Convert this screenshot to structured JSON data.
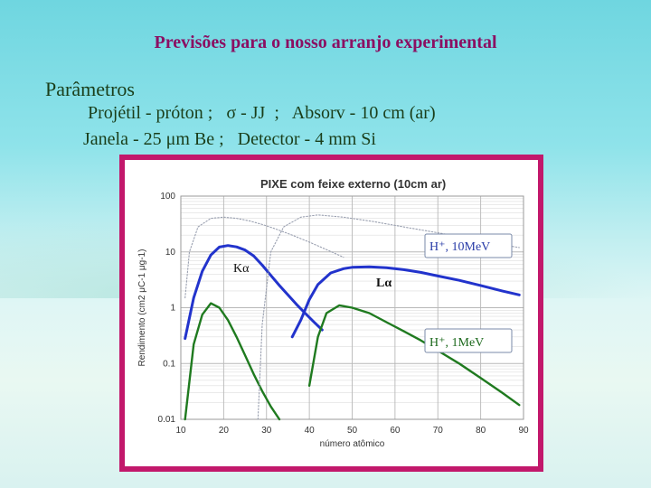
{
  "slide": {
    "title": "Previsões para o nosso arranjo experimental",
    "params_heading": "Parâmetros",
    "params_line1": "Projétil - próton ;   σ - JJ  ;   Absorv - 10 cm (ar)",
    "params_line2": "Janela - 25 μm Be ;   Detector - 4 mm Si"
  },
  "colors": {
    "title": "#8b0f62",
    "text": "#1a3e1a",
    "frame": "#c2186b",
    "blue_series": "#2233cc",
    "green_series": "#1f7a1f",
    "dotted_series": "#9aa0b0"
  },
  "chart_data": {
    "type": "line",
    "title": "PIXE   com feixe externo (10cm ar)",
    "xlabel": "número atômico",
    "ylabel": "Rendimento (cm2 μC-1 μg-1)",
    "xlim": [
      10,
      90
    ],
    "ylim": [
      0.01,
      100
    ],
    "yscale": "log",
    "grid": true,
    "x_ticks": [
      "10",
      "20",
      "30",
      "40",
      "50",
      "60",
      "70",
      "80",
      "90"
    ],
    "y_ticks": [
      "0.01",
      "0.1",
      "1",
      "10",
      "100"
    ],
    "annotations": {
      "box_10mev": "H⁺, 10MeV",
      "box_1mev": "H⁺, 1MeV",
      "k_alpha": "Kα",
      "l_alpha": "Lα"
    },
    "series": [
      {
        "style": "blue-solid",
        "x": [
          11,
          13,
          15,
          17,
          19,
          21,
          23,
          25,
          27,
          29,
          31,
          33,
          35,
          37,
          39,
          41,
          43
        ],
        "y": [
          0.28,
          1.5,
          4.5,
          8.8,
          12.2,
          13.0,
          12.3,
          10.8,
          8.5,
          5.8,
          3.8,
          2.5,
          1.7,
          1.15,
          0.8,
          0.56,
          0.4
        ]
      },
      {
        "style": "blue-solid",
        "x": [
          36,
          38,
          40,
          42,
          45,
          48,
          50,
          54,
          58,
          62,
          66,
          70,
          75,
          80,
          85,
          89
        ],
        "y": [
          0.3,
          0.6,
          1.4,
          2.6,
          4.2,
          5.0,
          5.3,
          5.4,
          5.2,
          4.8,
          4.3,
          3.7,
          3.1,
          2.5,
          2.0,
          1.7
        ]
      },
      {
        "style": "green-solid",
        "x": [
          11,
          13,
          15,
          17,
          19,
          21,
          23,
          25,
          27,
          29,
          31,
          33
        ],
        "y": [
          0.01,
          0.22,
          0.75,
          1.2,
          1.0,
          0.6,
          0.3,
          0.14,
          0.065,
          0.032,
          0.017,
          0.01
        ]
      },
      {
        "style": "green-solid",
        "x": [
          40,
          42,
          44,
          47,
          50,
          54,
          58,
          62,
          66,
          70,
          75,
          80,
          85,
          89
        ],
        "y": [
          0.04,
          0.3,
          0.8,
          1.1,
          1.0,
          0.8,
          0.55,
          0.38,
          0.26,
          0.17,
          0.1,
          0.055,
          0.03,
          0.018
        ]
      },
      {
        "style": "gray-dotted",
        "x": [
          11,
          12,
          14,
          17,
          20,
          23,
          26,
          29,
          32,
          36,
          40,
          44,
          48
        ],
        "y": [
          1.5,
          10,
          28,
          40,
          42,
          40,
          36,
          31,
          26,
          20,
          15,
          11,
          8
        ]
      },
      {
        "style": "gray-dotted",
        "x": [
          28,
          29,
          31,
          34,
          38,
          42,
          48,
          55,
          62,
          70,
          78,
          86,
          89
        ],
        "y": [
          0.01,
          0.5,
          10,
          28,
          42,
          46,
          42,
          35,
          28,
          22,
          17,
          13,
          12
        ]
      }
    ]
  }
}
